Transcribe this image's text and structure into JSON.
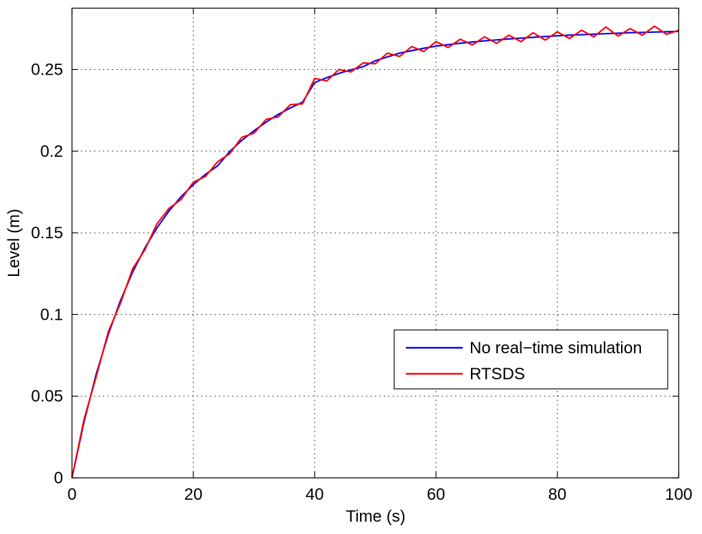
{
  "chart_data": {
    "type": "line",
    "xlabel": "Time (s)",
    "ylabel": "Level (m)",
    "xlim": [
      0,
      100
    ],
    "ylim": [
      0,
      0.2875
    ],
    "xticks": [
      0,
      20,
      40,
      60,
      80,
      100
    ],
    "xtick_labels": [
      "0",
      "20",
      "40",
      "60",
      "80",
      "100"
    ],
    "yticks": [
      0,
      0.05,
      0.1,
      0.15,
      0.2,
      0.25
    ],
    "ytick_labels": [
      "0",
      "0.05",
      "0.1",
      "0.15",
      "0.2",
      "0.25"
    ],
    "grid": true,
    "legend_position": "lower-right",
    "series": [
      {
        "name": "No real−time simulation",
        "color": "#0000ff",
        "x": [
          0,
          2,
          4,
          6,
          8,
          10,
          12,
          14,
          16,
          18,
          20,
          22,
          24,
          26,
          28,
          30,
          32,
          34,
          36,
          38,
          40,
          42,
          44,
          46,
          48,
          50,
          52,
          54,
          56,
          58,
          60,
          62,
          64,
          66,
          68,
          70,
          72,
          74,
          76,
          78,
          80,
          82,
          84,
          86,
          88,
          90,
          92,
          94,
          96,
          98,
          100
        ],
        "values": [
          0,
          0.0345,
          0.0636,
          0.088,
          0.1086,
          0.126,
          0.1406,
          0.153,
          0.1634,
          0.1722,
          0.1795,
          0.1858,
          0.191,
          0.1998,
          0.2066,
          0.2125,
          0.2178,
          0.2225,
          0.2265,
          0.23,
          0.242,
          0.245,
          0.2476,
          0.2498,
          0.2517,
          0.2553,
          0.2577,
          0.26,
          0.2615,
          0.263,
          0.2643,
          0.2652,
          0.2661,
          0.2668,
          0.2675,
          0.2681,
          0.2687,
          0.2692,
          0.2697,
          0.2702,
          0.2706,
          0.271,
          0.2713,
          0.2716,
          0.2719,
          0.2722,
          0.2725,
          0.2727,
          0.2729,
          0.2731,
          0.2733
        ]
      },
      {
        "name": "RTSDS",
        "color": "#ff0000",
        "x": [
          0,
          2,
          4,
          6,
          8,
          10,
          12,
          14,
          16,
          18,
          20,
          22,
          24,
          26,
          28,
          30,
          32,
          34,
          36,
          38,
          40,
          42,
          44,
          46,
          48,
          50,
          52,
          54,
          56,
          58,
          60,
          62,
          64,
          66,
          68,
          70,
          72,
          74,
          76,
          78,
          80,
          82,
          84,
          86,
          88,
          90,
          92,
          94,
          96,
          98,
          100
        ],
        "values": [
          0,
          0.036,
          0.062,
          0.0895,
          0.107,
          0.128,
          0.1395,
          0.1555,
          0.165,
          0.1705,
          0.181,
          0.1845,
          0.1935,
          0.1985,
          0.2085,
          0.211,
          0.2195,
          0.221,
          0.2285,
          0.229,
          0.2445,
          0.243,
          0.25,
          0.2485,
          0.254,
          0.2535,
          0.26,
          0.258,
          0.264,
          0.261,
          0.267,
          0.2635,
          0.2685,
          0.265,
          0.27,
          0.266,
          0.271,
          0.267,
          0.2725,
          0.268,
          0.273,
          0.269,
          0.274,
          0.27,
          0.276,
          0.2705,
          0.275,
          0.271,
          0.2765,
          0.2715,
          0.274
        ]
      }
    ]
  }
}
